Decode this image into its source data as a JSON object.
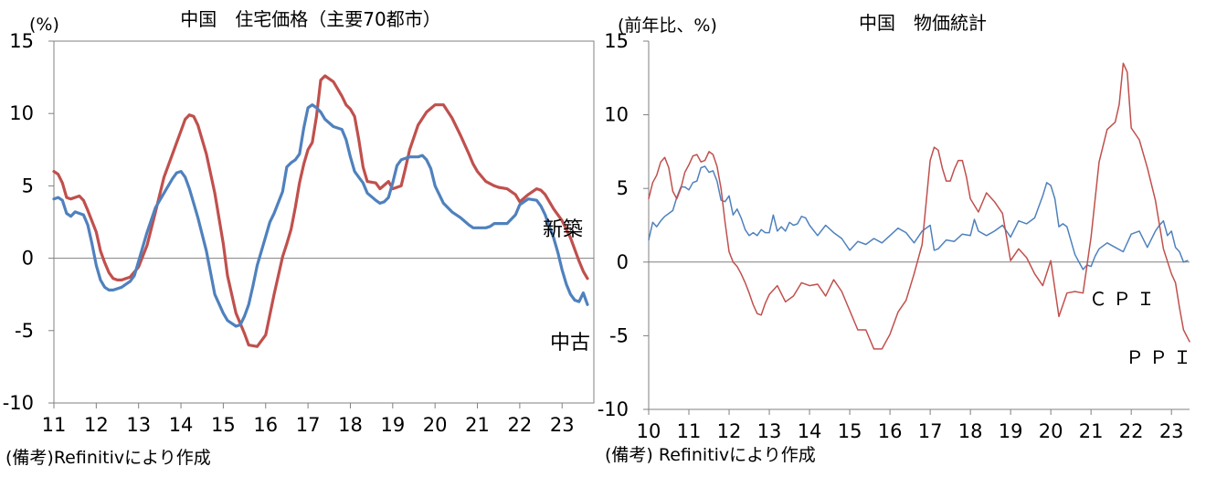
{
  "chart_data": [
    {
      "type": "line",
      "title": "中国　住宅価格（主要70都市）",
      "ylabel": "(%)",
      "xlabel": "",
      "ylim": [
        -10,
        15
      ],
      "yticks": [
        "15",
        "10",
        "5",
        "0",
        "-5",
        "-10"
      ],
      "xlim": [
        2011,
        2023.75
      ],
      "xtick_labels": [
        "11",
        "12",
        "13",
        "14",
        "15",
        "16",
        "17",
        "18",
        "19",
        "20",
        "21",
        "22",
        "23"
      ],
      "grid": false,
      "source": "(備考)Refinitivにより作成",
      "series": [
        {
          "name": "新築",
          "color": "#c0504d",
          "x": [
            2011.0,
            2011.1,
            2011.2,
            2011.3,
            2011.4,
            2011.6,
            2011.7,
            2011.8,
            2012.0,
            2012.1,
            2012.2,
            2012.3,
            2012.4,
            2012.5,
            2012.6,
            2012.7,
            2012.8,
            2013.0,
            2013.2,
            2013.4,
            2013.6,
            2013.8,
            2013.9,
            2014.0,
            2014.1,
            2014.2,
            2014.3,
            2014.4,
            2014.6,
            2014.8,
            2015.0,
            2015.1,
            2015.3,
            2015.5,
            2015.6,
            2015.8,
            2016.0,
            2016.2,
            2016.4,
            2016.5,
            2016.6,
            2016.7,
            2016.8,
            2016.9,
            2017.0,
            2017.1,
            2017.2,
            2017.3,
            2017.4,
            2017.6,
            2017.8,
            2017.9,
            2018.0,
            2018.1,
            2018.2,
            2018.3,
            2018.4,
            2018.6,
            2018.7,
            2018.9,
            2019.0,
            2019.2,
            2019.3,
            2019.4,
            2019.6,
            2019.8,
            2020.0,
            2020.2,
            2020.4,
            2020.6,
            2020.8,
            2020.9,
            2021.0,
            2021.2,
            2021.4,
            2021.5,
            2021.7,
            2021.9,
            2022.0,
            2022.2,
            2022.4,
            2022.5,
            2022.6,
            2022.8,
            2023.0,
            2023.2,
            2023.4,
            2023.5,
            2023.6
          ],
          "values": [
            6.0,
            5.8,
            5.2,
            4.2,
            4.1,
            4.3,
            4.0,
            3.3,
            1.8,
            0.5,
            -0.3,
            -1.0,
            -1.4,
            -1.5,
            -1.5,
            -1.4,
            -1.3,
            -0.6,
            0.9,
            3.2,
            5.6,
            7.2,
            8.0,
            8.8,
            9.6,
            9.9,
            9.8,
            9.2,
            7.2,
            4.5,
            1.0,
            -1.2,
            -3.8,
            -5.2,
            -6.0,
            -6.1,
            -5.3,
            -2.5,
            0.1,
            1.0,
            2.0,
            3.5,
            5.2,
            6.5,
            7.5,
            8.0,
            9.8,
            12.3,
            12.6,
            12.2,
            11.2,
            10.6,
            10.3,
            9.8,
            8.2,
            6.3,
            5.3,
            5.2,
            4.8,
            5.3,
            4.8,
            5.0,
            6.2,
            7.5,
            9.2,
            10.1,
            10.6,
            10.6,
            9.7,
            8.5,
            7.2,
            6.5,
            6.0,
            5.3,
            5.0,
            4.9,
            4.8,
            4.4,
            3.9,
            4.4,
            4.8,
            4.7,
            4.4,
            3.4,
            2.6,
            1.4,
            -0.2,
            -0.9,
            -1.4
          ]
        },
        {
          "name": "中古",
          "color": "#4f81bd",
          "x": [
            2011.0,
            2011.1,
            2011.2,
            2011.3,
            2011.4,
            2011.5,
            2011.7,
            2011.8,
            2011.9,
            2012.0,
            2012.1,
            2012.2,
            2012.3,
            2012.4,
            2012.5,
            2012.6,
            2012.7,
            2012.8,
            2012.9,
            2013.0,
            2013.2,
            2013.4,
            2013.6,
            2013.8,
            2013.9,
            2014.0,
            2014.1,
            2014.2,
            2014.3,
            2014.4,
            2014.6,
            2014.8,
            2015.0,
            2015.1,
            2015.3,
            2015.4,
            2015.5,
            2015.6,
            2015.7,
            2015.8,
            2016.0,
            2016.1,
            2016.2,
            2016.4,
            2016.5,
            2016.6,
            2016.7,
            2016.8,
            2016.9,
            2017.0,
            2017.1,
            2017.2,
            2017.3,
            2017.4,
            2017.6,
            2017.8,
            2017.9,
            2018.0,
            2018.1,
            2018.2,
            2018.3,
            2018.4,
            2018.6,
            2018.7,
            2018.8,
            2018.9,
            2019.0,
            2019.1,
            2019.2,
            2019.3,
            2019.4,
            2019.6,
            2019.7,
            2019.8,
            2019.9,
            2020.0,
            2020.2,
            2020.4,
            2020.6,
            2020.8,
            2020.9,
            2021.0,
            2021.2,
            2021.3,
            2021.4,
            2021.5,
            2021.7,
            2021.9,
            2022.0,
            2022.2,
            2022.4,
            2022.5,
            2022.6,
            2022.7,
            2022.8,
            2022.9,
            2023.0,
            2023.1,
            2023.2,
            2023.3,
            2023.4,
            2023.5,
            2023.6
          ],
          "values": [
            4.1,
            4.2,
            4.0,
            3.1,
            2.9,
            3.2,
            3.0,
            2.3,
            1.0,
            -0.5,
            -1.5,
            -2.0,
            -2.2,
            -2.2,
            -2.1,
            -2.0,
            -1.8,
            -1.6,
            -1.2,
            -0.2,
            1.8,
            3.5,
            4.5,
            5.5,
            5.9,
            6.0,
            5.6,
            4.8,
            3.8,
            2.8,
            0.5,
            -2.5,
            -3.8,
            -4.3,
            -4.7,
            -4.6,
            -4.0,
            -3.2,
            -1.9,
            -0.5,
            1.5,
            2.5,
            3.1,
            4.6,
            6.3,
            6.6,
            6.8,
            7.2,
            9.0,
            10.4,
            10.6,
            10.4,
            10.1,
            9.6,
            9.1,
            8.9,
            8.2,
            7.0,
            6.0,
            5.6,
            5.2,
            4.5,
            4.0,
            3.8,
            3.9,
            4.2,
            5.2,
            6.4,
            6.8,
            6.9,
            7.0,
            7.0,
            7.1,
            6.8,
            6.2,
            5.0,
            3.8,
            3.2,
            2.8,
            2.3,
            2.1,
            2.1,
            2.1,
            2.2,
            2.4,
            2.4,
            2.4,
            3.0,
            3.7,
            4.1,
            4.0,
            3.6,
            3.0,
            2.2,
            1.4,
            0.4,
            -0.8,
            -1.8,
            -2.5,
            -2.9,
            -3.0,
            -2.4,
            -3.2
          ]
        }
      ]
    },
    {
      "type": "line",
      "title": "中国　物価統計",
      "ylabel": "(前年比、%)",
      "xlabel": "",
      "ylim": [
        -10,
        15
      ],
      "yticks": [
        "15",
        "10",
        "5",
        "0",
        "-5",
        "-10"
      ],
      "xlim": [
        2010,
        2023.45
      ],
      "xtick_labels": [
        "10",
        "11",
        "12",
        "13",
        "14",
        "15",
        "16",
        "17",
        "18",
        "19",
        "20",
        "21",
        "22",
        "23"
      ],
      "grid": false,
      "source": "(備考) Refinitivにより作成",
      "series": [
        {
          "name": "ＣＰＩ",
          "color": "#4f81bd",
          "x": [
            2010.0,
            2010.1,
            2010.2,
            2010.3,
            2010.4,
            2010.5,
            2010.6,
            2010.7,
            2010.8,
            2010.9,
            2011.0,
            2011.1,
            2011.2,
            2011.3,
            2011.4,
            2011.5,
            2011.6,
            2011.7,
            2011.8,
            2011.9,
            2012.0,
            2012.1,
            2012.2,
            2012.3,
            2012.4,
            2012.5,
            2012.6,
            2012.7,
            2012.8,
            2012.9,
            2013.0,
            2013.1,
            2013.2,
            2013.3,
            2013.4,
            2013.5,
            2013.6,
            2013.7,
            2013.8,
            2013.9,
            2014.0,
            2014.2,
            2014.4,
            2014.6,
            2014.8,
            2015.0,
            2015.2,
            2015.4,
            2015.6,
            2015.8,
            2016.0,
            2016.2,
            2016.4,
            2016.6,
            2016.8,
            2017.0,
            2017.1,
            2017.2,
            2017.4,
            2017.6,
            2017.8,
            2018.0,
            2018.1,
            2018.2,
            2018.4,
            2018.6,
            2018.8,
            2019.0,
            2019.2,
            2019.4,
            2019.6,
            2019.8,
            2019.9,
            2020.0,
            2020.1,
            2020.2,
            2020.3,
            2020.4,
            2020.6,
            2020.8,
            2020.9,
            2021.0,
            2021.1,
            2021.2,
            2021.4,
            2021.6,
            2021.8,
            2022.0,
            2022.2,
            2022.4,
            2022.6,
            2022.7,
            2022.8,
            2022.9,
            2023.0,
            2023.1,
            2023.2,
            2023.3,
            2023.4
          ],
          "values": [
            1.5,
            2.7,
            2.4,
            2.8,
            3.1,
            3.3,
            3.5,
            4.4,
            5.1,
            5.1,
            4.9,
            5.4,
            5.5,
            6.4,
            6.5,
            6.1,
            6.2,
            5.5,
            4.2,
            4.1,
            4.5,
            3.2,
            3.6,
            3.0,
            2.2,
            1.8,
            2.0,
            1.8,
            2.2,
            2.0,
            2.0,
            3.2,
            2.1,
            2.4,
            2.1,
            2.7,
            2.5,
            2.6,
            3.1,
            3.0,
            2.5,
            1.8,
            2.5,
            2.0,
            1.6,
            0.8,
            1.4,
            1.2,
            1.6,
            1.3,
            1.8,
            2.3,
            2.0,
            1.3,
            2.1,
            2.5,
            0.8,
            0.9,
            1.5,
            1.4,
            1.9,
            1.8,
            2.9,
            2.1,
            1.8,
            2.1,
            2.5,
            1.7,
            2.8,
            2.6,
            3.0,
            4.5,
            5.4,
            5.2,
            4.3,
            2.4,
            2.6,
            2.4,
            0.5,
            -0.5,
            -0.2,
            -0.3,
            0.4,
            0.9,
            1.3,
            1.0,
            0.7,
            1.9,
            2.1,
            1.0,
            2.1,
            2.5,
            2.8,
            1.8,
            2.1,
            1.0,
            0.7,
            0.0,
            0.1
          ]
        },
        {
          "name": "ＰＰＩ",
          "color": "#c0504d",
          "x": [
            2010.0,
            2010.1,
            2010.2,
            2010.3,
            2010.4,
            2010.5,
            2010.6,
            2010.7,
            2010.8,
            2010.9,
            2011.0,
            2011.1,
            2011.2,
            2011.3,
            2011.4,
            2011.5,
            2011.6,
            2011.7,
            2011.8,
            2011.9,
            2012.0,
            2012.1,
            2012.2,
            2012.3,
            2012.4,
            2012.5,
            2012.6,
            2012.7,
            2012.8,
            2012.9,
            2013.0,
            2013.2,
            2013.4,
            2013.6,
            2013.8,
            2014.0,
            2014.2,
            2014.4,
            2014.6,
            2014.8,
            2015.0,
            2015.2,
            2015.4,
            2015.6,
            2015.8,
            2016.0,
            2016.2,
            2016.4,
            2016.6,
            2016.8,
            2017.0,
            2017.1,
            2017.2,
            2017.3,
            2017.4,
            2017.5,
            2017.6,
            2017.7,
            2017.8,
            2017.9,
            2018.0,
            2018.2,
            2018.4,
            2018.6,
            2018.8,
            2019.0,
            2019.2,
            2019.4,
            2019.6,
            2019.8,
            2020.0,
            2020.2,
            2020.4,
            2020.6,
            2020.8,
            2021.0,
            2021.2,
            2021.4,
            2021.6,
            2021.7,
            2021.8,
            2021.9,
            2022.0,
            2022.2,
            2022.4,
            2022.6,
            2022.8,
            2023.0,
            2023.1,
            2023.2,
            2023.3,
            2023.45
          ],
          "values": [
            4.3,
            5.4,
            5.9,
            6.8,
            7.1,
            6.4,
            4.8,
            4.3,
            5.0,
            6.1,
            6.6,
            7.2,
            7.3,
            6.8,
            6.9,
            7.5,
            7.3,
            6.5,
            5.0,
            2.7,
            0.7,
            0.0,
            -0.3,
            -0.8,
            -1.4,
            -2.1,
            -2.9,
            -3.5,
            -3.6,
            -2.8,
            -2.2,
            -1.6,
            -2.7,
            -2.3,
            -1.4,
            -1.6,
            -1.5,
            -2.3,
            -1.2,
            -2.0,
            -3.3,
            -4.6,
            -4.6,
            -5.9,
            -5.9,
            -4.9,
            -3.4,
            -2.6,
            -0.8,
            1.2,
            6.9,
            7.8,
            7.6,
            6.4,
            5.5,
            5.5,
            6.3,
            6.9,
            6.9,
            5.8,
            4.3,
            3.4,
            4.7,
            4.1,
            3.3,
            0.1,
            0.9,
            0.3,
            -0.8,
            -1.6,
            0.1,
            -3.7,
            -2.1,
            -2.0,
            -2.1,
            1.7,
            6.8,
            9.0,
            9.5,
            10.7,
            13.5,
            12.9,
            9.1,
            8.3,
            6.4,
            4.2,
            0.9,
            -0.8,
            -1.4,
            -3.1,
            -4.6,
            -5.4
          ]
        }
      ]
    }
  ]
}
